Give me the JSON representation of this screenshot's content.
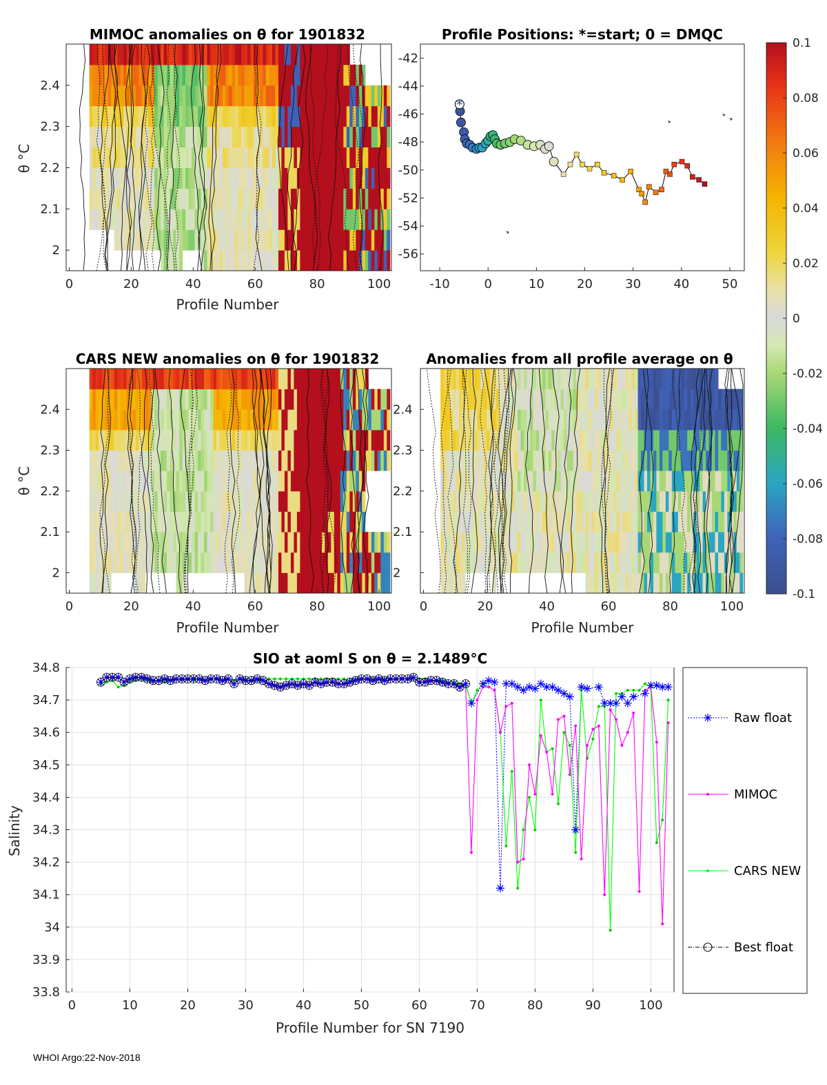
{
  "footer": "WHOI Argo:22-Nov-2018",
  "panels": {
    "mimoc": {
      "title": "MIMOC anomalies on θ  for 1901832",
      "ylabel": "θ °C",
      "xlabel": "Profile Number",
      "xticks": [
        0,
        20,
        40,
        60,
        80,
        100
      ],
      "yticks": [
        2,
        2.1,
        2.2,
        2.3,
        2.4
      ],
      "ylim": [
        1.95,
        2.5
      ],
      "xlim": [
        -1,
        104
      ]
    },
    "positions": {
      "title": "Profile Positions: *=start; 0 = DMQC",
      "xticks": [
        -10,
        0,
        10,
        20,
        30,
        40,
        50
      ],
      "yticks": [
        -42,
        -44,
        -46,
        -48,
        -50,
        -52,
        -54,
        -56
      ],
      "xlim": [
        -14,
        53
      ],
      "ylim": [
        -57.2,
        -41
      ]
    },
    "cars": {
      "title": "CARS NEW anomalies on θ for 1901832",
      "ylabel": "θ °C",
      "xlabel": "Profile Number",
      "xticks": [
        0,
        20,
        40,
        60,
        80,
        100
      ],
      "yticks": [
        2,
        2.1,
        2.2,
        2.3,
        2.4
      ],
      "ylim": [
        1.95,
        2.5
      ],
      "xlim": [
        -1,
        104
      ]
    },
    "avg": {
      "title": "Anomalies from all profile average on θ",
      "xlabel": "Profile Number",
      "xticks": [
        0,
        20,
        40,
        60,
        80,
        100
      ],
      "yticks": [
        2,
        2.1,
        2.2,
        2.3,
        2.4
      ],
      "ylim": [
        1.95,
        2.5
      ],
      "xlim": [
        -1,
        104
      ]
    },
    "colorbar": {
      "ticks": [
        "0.1",
        "0.08",
        "0.06",
        "0.04",
        "0.02",
        "0",
        "-0.02",
        "-0.04",
        "-0.06",
        "-0.08",
        "-0.1"
      ]
    }
  },
  "chart_data": {
    "type": "line",
    "title": "SIO at aoml S on θ = 2.1489°C",
    "xlabel": "Profile Number for SN 7190",
    "ylabel": "Salinity",
    "xlim": [
      -1,
      104
    ],
    "ylim": [
      33.8,
      34.8
    ],
    "xticks": [
      0,
      10,
      20,
      30,
      40,
      50,
      60,
      70,
      80,
      90,
      100
    ],
    "yticks": [
      "33.8",
      "33.9",
      "34",
      "34.1",
      "34.2",
      "34.3",
      "34.4",
      "34.5",
      "34.6",
      "34.7",
      "34.8"
    ],
    "legend": [
      "Raw float",
      "MIMOC",
      "CARS NEW",
      "Best float"
    ],
    "series": [
      {
        "name": "Raw float",
        "color": "#0000ff",
        "x": [
          69,
          71,
          72,
          73,
          74,
          75,
          76,
          77,
          78,
          79,
          80,
          81,
          82,
          83,
          84,
          85,
          86,
          87,
          88,
          89,
          91,
          92,
          93,
          94,
          95,
          96,
          97,
          99,
          100,
          101,
          102,
          103
        ],
        "y": [
          34.69,
          34.75,
          34.76,
          34.755,
          34.12,
          34.75,
          34.75,
          34.74,
          34.73,
          34.74,
          34.735,
          34.75,
          34.74,
          34.74,
          34.73,
          34.72,
          34.71,
          34.3,
          34.74,
          34.735,
          34.74,
          34.69,
          34.69,
          34.69,
          34.71,
          34.69,
          34.71,
          34.72,
          34.745,
          34.745,
          34.74,
          34.74
        ]
      },
      {
        "name": "MIMOC",
        "color": "#ff00ff",
        "x": [
          69,
          70,
          71,
          72,
          73,
          74,
          75,
          76,
          77,
          78,
          79,
          80,
          81,
          82,
          83,
          84,
          85,
          86,
          87,
          88,
          89,
          90,
          91,
          92,
          93,
          94,
          95,
          96,
          97,
          98,
          99,
          100,
          101,
          102,
          103
        ],
        "y": [
          34.23,
          34.7,
          34.74,
          34.74,
          34.73,
          34.6,
          34.68,
          34.69,
          34.2,
          34.21,
          34.5,
          34.41,
          34.59,
          34.54,
          34.41,
          34.64,
          34.65,
          34.47,
          34.62,
          34.21,
          34.56,
          34.61,
          34.62,
          34.1,
          34.67,
          34.64,
          34.56,
          34.6,
          34.66,
          34.11,
          34.73,
          34.74,
          34.57,
          34.01,
          34.63
        ]
      },
      {
        "name": "CARS NEW",
        "color": "#00ff00",
        "x": [
          69,
          70,
          71,
          72,
          73,
          74,
          75,
          76,
          77,
          78,
          79,
          80,
          81,
          82,
          83,
          84,
          85,
          86,
          87,
          88,
          89,
          90,
          91,
          92,
          93,
          94,
          95,
          96,
          97,
          98,
          99,
          100,
          101,
          102,
          103
        ],
        "y": [
          34.69,
          34.73,
          34.75,
          34.74,
          34.73,
          34.6,
          34.25,
          34.48,
          34.12,
          34.3,
          34.4,
          34.3,
          34.7,
          34.54,
          34.55,
          34.38,
          34.6,
          34.56,
          34.23,
          34.73,
          34.52,
          34.58,
          34.68,
          34.68,
          33.99,
          34.72,
          34.72,
          34.73,
          34.73,
          34.73,
          34.75,
          34.74,
          34.26,
          34.33,
          34.7
        ]
      },
      {
        "name": "Best float",
        "color": "#000000",
        "x": [
          5,
          6,
          7,
          8,
          9,
          10,
          11,
          12,
          13,
          14,
          15,
          16,
          17,
          18,
          19,
          20,
          21,
          22,
          23,
          24,
          25,
          26,
          27,
          28,
          29,
          30,
          31,
          32,
          33,
          34,
          35,
          36,
          37,
          38,
          39,
          40,
          41,
          42,
          43,
          44,
          45,
          46,
          47,
          48,
          49,
          50,
          51,
          52,
          53,
          54,
          55,
          56,
          57,
          58,
          59,
          60,
          61,
          62,
          63,
          64,
          65,
          66,
          67,
          68
        ],
        "y": [
          34.755,
          34.77,
          34.77,
          34.77,
          34.755,
          34.765,
          34.77,
          34.77,
          34.765,
          34.76,
          34.76,
          34.765,
          34.76,
          34.765,
          34.765,
          34.765,
          34.765,
          34.765,
          34.76,
          34.765,
          34.765,
          34.76,
          34.765,
          34.75,
          34.765,
          34.76,
          34.76,
          34.765,
          34.76,
          34.75,
          34.745,
          34.74,
          34.745,
          34.75,
          34.745,
          34.75,
          34.745,
          34.755,
          34.75,
          34.755,
          34.755,
          34.75,
          34.75,
          34.755,
          34.76,
          34.765,
          34.765,
          34.76,
          34.765,
          34.76,
          34.765,
          34.765,
          34.765,
          34.765,
          34.77,
          34.755,
          34.755,
          34.76,
          34.76,
          34.755,
          34.75,
          34.75,
          34.74,
          34.75
        ]
      }
    ],
    "cars_early_y": [
      34.75,
      34.755,
      34.76,
      34.74,
      34.745,
      34.755,
      34.76,
      34.765,
      34.76,
      34.755,
      34.76,
      34.755,
      34.76,
      34.765,
      34.76,
      34.765,
      34.76,
      34.765,
      34.76,
      34.765,
      34.765,
      34.76,
      34.765,
      34.76,
      34.765,
      34.765,
      34.76,
      34.76,
      34.76,
      34.765,
      34.765,
      34.765,
      34.765,
      34.765,
      34.765,
      34.765,
      34.765,
      34.765,
      34.765,
      34.765,
      34.765,
      34.765,
      34.765,
      34.76,
      34.765,
      34.765,
      34.765,
      34.765,
      34.765,
      34.765,
      34.765,
      34.765,
      34.765,
      34.765,
      34.765,
      34.765,
      34.765,
      34.76,
      34.76,
      34.76,
      34.755,
      34.755,
      34.75,
      34.745
    ]
  }
}
